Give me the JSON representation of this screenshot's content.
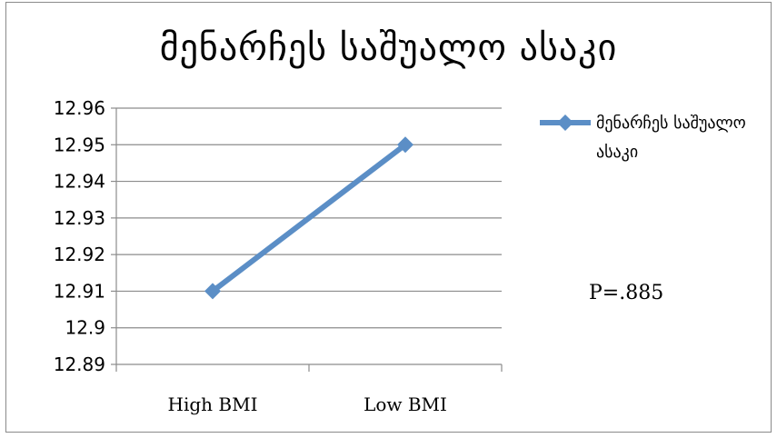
{
  "chart_data": {
    "type": "line",
    "title": "მენარჩეს საშუალო ასაკი",
    "categories": [
      "High BMI",
      "Low BMI"
    ],
    "series": [
      {
        "name": "მენარჩეს საშუალო ასაკი",
        "values": [
          12.91,
          12.95
        ],
        "color": "#5b8ec6"
      }
    ],
    "ylim": [
      12.89,
      12.96
    ],
    "yticks": [
      "12.89",
      "12.9",
      "12.91",
      "12.92",
      "12.93",
      "12.94",
      "12.95",
      "12.96"
    ],
    "grid": true,
    "legend": "right",
    "annotation": "P=.885"
  }
}
